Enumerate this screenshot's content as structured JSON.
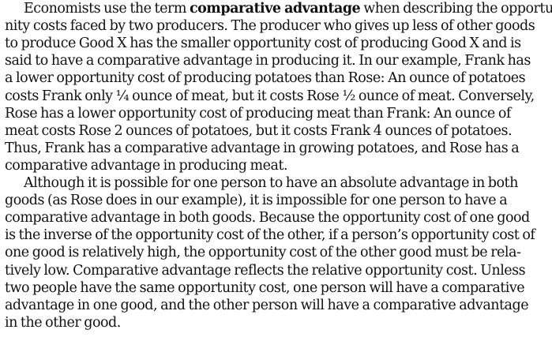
{
  "document": {
    "paragraphs": [
      {
        "lines": [
          [
            "Economists use the term ",
            {
              "b": "comparative advantage"
            },
            " when describing the opportu-"
          ],
          [
            "nity costs faced by two producers. The producer who gives up less of other goods"
          ],
          [
            "to produce Good X has the smaller opportunity cost of producing Good X and is"
          ],
          [
            "said to have a comparative advantage in producing it. In our example, Frank has"
          ],
          [
            "a lower opportunity cost of producing potatoes than Rose: An ounce of potatoes"
          ],
          [
            "costs Frank only ¼ ounce of meat, but it costs Rose ½ ounce of meat. Conversely,"
          ],
          [
            "Rose has a lower opportunity cost of producing meat than Frank: An ounce of"
          ],
          [
            "meat costs Rose 2 ounces of potatoes, but it costs Frank 4 ounces of potatoes."
          ],
          [
            "Thus, Frank has a comparative advantage in growing potatoes, and Rose has a"
          ],
          [
            "comparative advantage in producing meat."
          ]
        ]
      },
      {
        "lines": [
          [
            "Although it is possible for one person to have an absolute advantage in both"
          ],
          [
            "goods (as Rose does in our example), it is impossible for one person to have a"
          ],
          [
            "comparative advantage in both goods. Because the opportunity cost of one good"
          ],
          [
            "is the inverse of the opportunity cost of the other, if a person’s opportunity cost of"
          ],
          [
            "one good is relatively high, the opportunity cost of the other good must be rela-"
          ],
          [
            "tively low. Comparative advantage reflects the relative opportunity cost. Unless"
          ],
          [
            "two people have the same opportunity cost, one person will have a comparative"
          ],
          [
            "advantage in one good, and the other person will have a comparative advantage"
          ],
          [
            "in the other good."
          ]
        ]
      }
    ]
  }
}
